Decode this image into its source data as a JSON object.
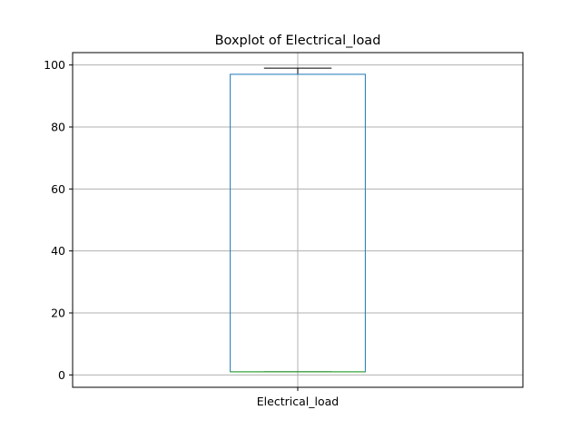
{
  "chart_data": {
    "type": "box",
    "title": "Boxplot of Electrical_load",
    "categories": [
      "Electrical_load"
    ],
    "series": [
      {
        "name": "Electrical_load",
        "min": 1,
        "q1": 1,
        "median": 1,
        "q3": 97,
        "max": 99
      }
    ],
    "ylim": [
      -4,
      104
    ],
    "yticks": [
      0,
      20,
      40,
      60,
      80,
      100
    ],
    "grid": true,
    "colors": {
      "box": "#1f77b4",
      "median": "#2ca02c",
      "whisker": "#000000",
      "grid": "#b0b0b0"
    }
  }
}
